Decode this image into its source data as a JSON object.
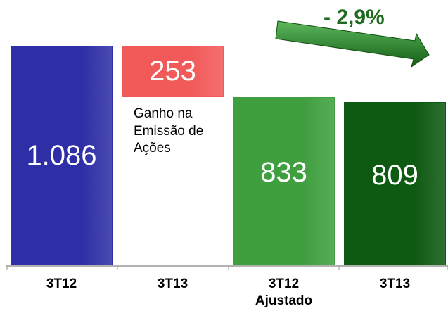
{
  "chart_data": {
    "type": "waterfall",
    "categories": [
      "3T12",
      "3T13",
      "3T12 Ajustado",
      "3T13"
    ],
    "values": [
      1086,
      253,
      833,
      809
    ],
    "value_labels": [
      "1.086",
      "253",
      "833",
      "809"
    ],
    "measure": [
      "absolute",
      "decrease",
      "absolute",
      "absolute"
    ],
    "colors": [
      "#2e2ea6",
      "#f25a5a",
      "#3f9f3f",
      "#0f5a12"
    ],
    "annotations": [
      "Ganho na Emissão de Ações",
      "- 2,9%"
    ]
  }
}
